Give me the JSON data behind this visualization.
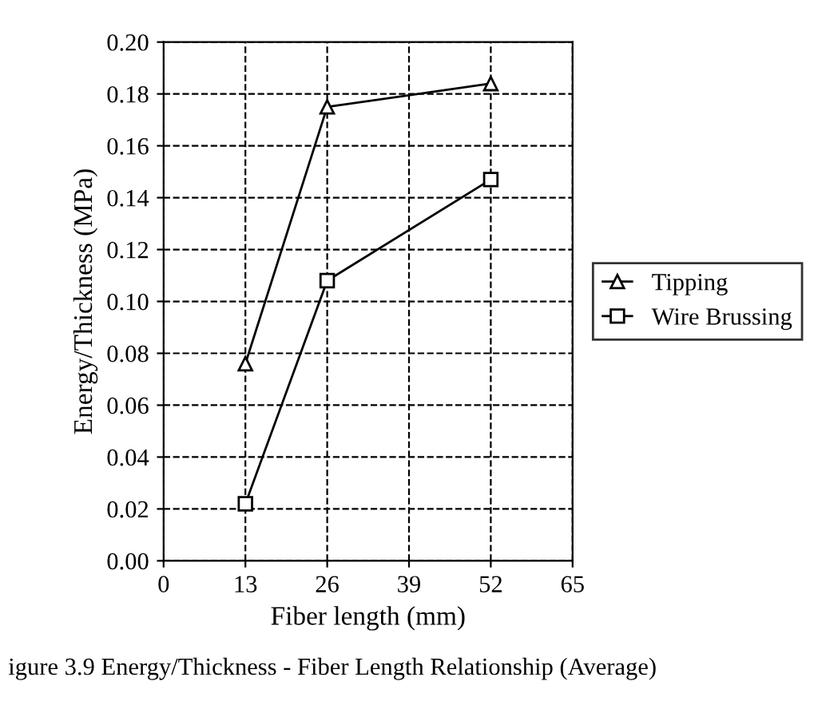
{
  "chart_data": {
    "type": "line",
    "xlabel": "Fiber length (mm)",
    "ylabel": "Energy/Thickness (MPa)",
    "x": [
      13,
      26,
      52
    ],
    "series": [
      {
        "name": "Tipping",
        "color": "#000000",
        "values": [
          0.076,
          0.175,
          0.184
        ],
        "marker": "triangle"
      },
      {
        "name": "Wire Brussing",
        "color": "#000000",
        "values": [
          0.022,
          0.108,
          0.147
        ],
        "marker": "square"
      }
    ],
    "xlim": [
      0,
      65
    ],
    "xticks": [
      0,
      13,
      26,
      39,
      52,
      65
    ],
    "ylim": [
      0,
      0.2
    ],
    "yticks": [
      {
        "value": 0,
        "label": "0.00"
      },
      {
        "value": 0.02,
        "label": "0.02"
      },
      {
        "value": 0.04,
        "label": "0.04"
      },
      {
        "value": 0.06,
        "label": "0.06"
      },
      {
        "value": 0.08,
        "label": "0.08"
      },
      {
        "value": 0.1,
        "label": "0.10"
      },
      {
        "value": 0.12,
        "label": "0.12"
      },
      {
        "value": 0.14,
        "label": "0.14"
      },
      {
        "value": 0.16,
        "label": "0.16"
      },
      {
        "value": 0.18,
        "label": "0.18"
      },
      {
        "value": 0.2,
        "label": "0.20"
      }
    ],
    "grid": true,
    "line_style": "solid",
    "legend": "right",
    "annotations": [
      "igure 3.9 Energy/Thickness - Fiber Length Relationship (Average)"
    ]
  }
}
